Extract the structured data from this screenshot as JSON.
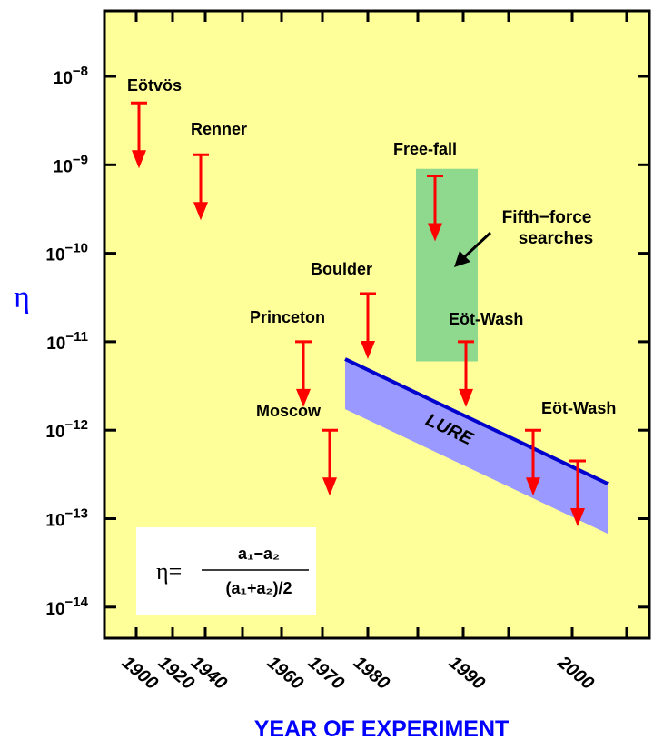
{
  "chart_data": {
    "type": "scatter",
    "title": "",
    "xlabel": "YEAR OF EXPERIMENT",
    "ylabel": "η",
    "y_scale": "log",
    "ylim": [
      1e-15,
      5e-08
    ],
    "x_ticks": [
      "1900",
      "1920",
      "1940",
      "1960",
      "1970",
      "1980",
      "1990",
      "2000"
    ],
    "y_ticks": [
      {
        "base": "10",
        "exp": "−8",
        "value": 1e-08
      },
      {
        "base": "10",
        "exp": "−9",
        "value": 1e-09
      },
      {
        "base": "10",
        "exp": "−10",
        "value": 1e-10
      },
      {
        "base": "10",
        "exp": "−11",
        "value": 1e-11
      },
      {
        "base": "10",
        "exp": "−12",
        "value": 1e-12
      },
      {
        "base": "10",
        "exp": "−13",
        "value": 1e-13
      },
      {
        "base": "10",
        "exp": "−14",
        "value": 1e-14
      }
    ],
    "upper_limits": [
      {
        "name": "Eötvös",
        "year": "1900",
        "eta": 5e-09
      },
      {
        "name": "Renner",
        "year": "1935",
        "eta": 1.3e-09
      },
      {
        "name": "Princeton",
        "year": "1964",
        "eta": 1e-11
      },
      {
        "name": "Moscow",
        "year": "1972",
        "eta": 1e-12
      },
      {
        "name": "Boulder",
        "year": "1980",
        "eta": 3.5e-11
      },
      {
        "name": "Free-fall",
        "year": "1987",
        "eta": 7.5e-10
      },
      {
        "name": "Eöt-Wash",
        "year": "1990",
        "eta": 1e-11
      },
      {
        "name": "Eöt-Wash",
        "year": "1994",
        "eta": 1e-12
      },
      {
        "name": "",
        "year": "1999",
        "eta": 4.5e-13
      }
    ],
    "regions": [
      {
        "name": "Fifth−force searches",
        "color": "#8fd98f",
        "eta_range": [
          6e-12,
          9e-10
        ]
      },
      {
        "name": "LURE",
        "color": "#9999ff",
        "upper_line": [
          [
            1975,
            5.5e-12
          ],
          [
            2003,
            2e-13
          ]
        ],
        "lower_line": [
          [
            1975,
            1.5e-12
          ],
          [
            2003,
            5.5e-14
          ]
        ]
      }
    ],
    "annotations": [
      "Fifth−force",
      "searches"
    ],
    "formula": {
      "lhs": "η=",
      "numerator": "a₁−a₂",
      "denominator": "(a₁+a₂)/2"
    },
    "colors": {
      "background": "#ffff99",
      "arrow": "#ff0000",
      "axis_label": "#0000ff"
    }
  }
}
